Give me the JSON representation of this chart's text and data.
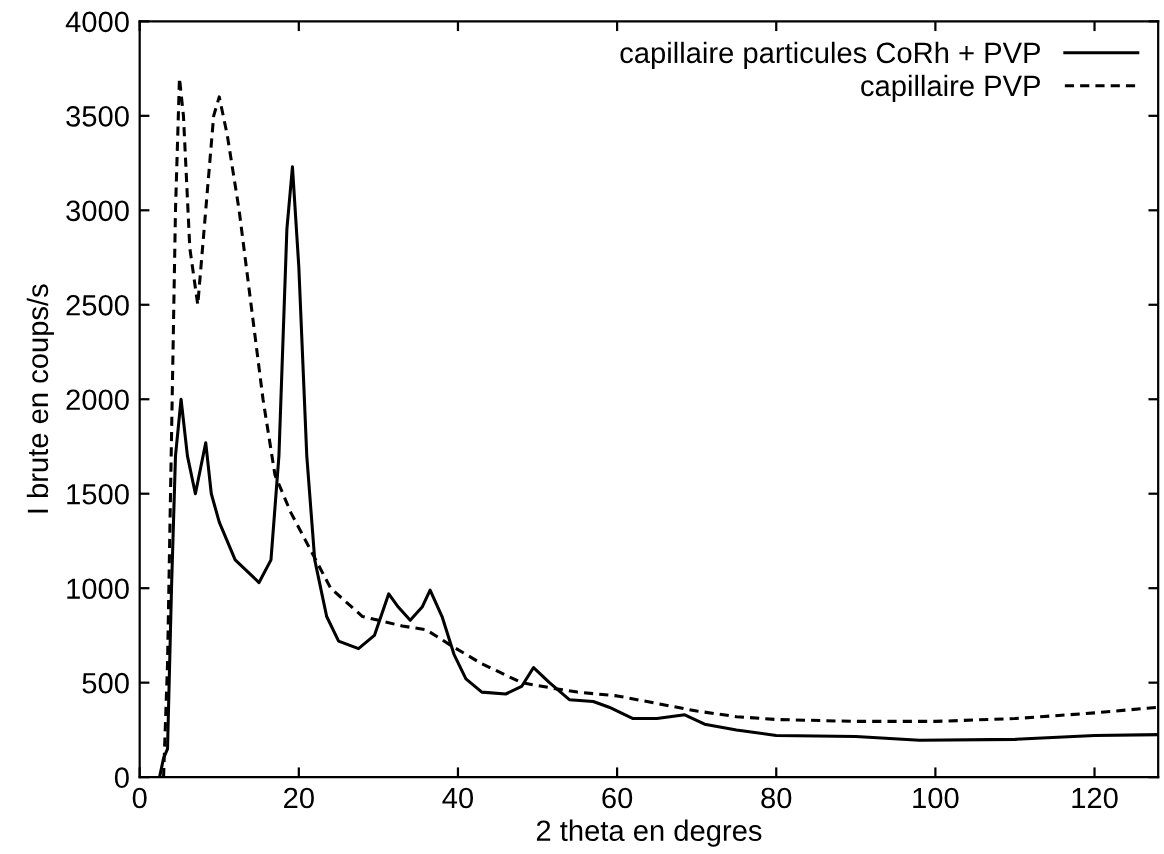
{
  "chart_data": {
    "type": "line",
    "xlabel": "2 theta en degres",
    "ylabel": "I brute en coups/s",
    "xlim": [
      0,
      128
    ],
    "ylim": [
      0,
      4000
    ],
    "xticks": [
      0,
      20,
      40,
      60,
      80,
      100,
      120
    ],
    "yticks": [
      0,
      500,
      1000,
      1500,
      2000,
      2500,
      3000,
      3500,
      4000
    ],
    "grid": false,
    "legend": "top right",
    "marker": "none",
    "series": [
      {
        "name": "capillaire particules CoRh + PVP",
        "color": "#000000",
        "line_style": "solid",
        "x": [
          2.5,
          3,
          3.5,
          4,
          4.5,
          5.2,
          6,
          7,
          8.3,
          9,
          10,
          12,
          15,
          16.5,
          17.5,
          18.5,
          19.2,
          20,
          21,
          22,
          23.5,
          25,
          27.5,
          29.5,
          31.3,
          32.5,
          34,
          35.5,
          36.5,
          38,
          39.5,
          41,
          43,
          46,
          48,
          49.5,
          51.5,
          54,
          57,
          59,
          62,
          65,
          68.5,
          71,
          75,
          80,
          90,
          98,
          110,
          120,
          128
        ],
        "values": [
          0,
          100,
          150,
          1000,
          1700,
          2000,
          1700,
          1500,
          1770,
          1500,
          1350,
          1150,
          1030,
          1150,
          1700,
          2900,
          3230,
          2700,
          1700,
          1150,
          850,
          720,
          680,
          750,
          970,
          900,
          830,
          900,
          990,
          850,
          650,
          520,
          450,
          440,
          480,
          580,
          500,
          410,
          400,
          370,
          310,
          310,
          330,
          280,
          250,
          220,
          215,
          195,
          200,
          220,
          225
        ]
      },
      {
        "name": "capillaire PVP",
        "color": "#000000",
        "line_style": "dashed",
        "x": [
          3,
          3.5,
          4,
          4.5,
          5,
          5.5,
          6.3,
          7.3,
          8.3,
          9.3,
          10,
          11,
          12.5,
          14,
          15.5,
          17,
          19,
          21.5,
          24,
          28,
          33,
          36,
          39,
          43,
          48,
          52,
          55,
          60,
          65,
          70,
          75,
          80,
          90,
          100,
          110,
          120,
          128
        ],
        "values": [
          0,
          600,
          1800,
          3000,
          3700,
          3500,
          2800,
          2500,
          3000,
          3500,
          3600,
          3400,
          3000,
          2500,
          2000,
          1600,
          1400,
          1200,
          1000,
          850,
          800,
          780,
          700,
          600,
          500,
          470,
          450,
          430,
          390,
          350,
          320,
          305,
          295,
          295,
          310,
          340,
          370
        ]
      }
    ]
  }
}
